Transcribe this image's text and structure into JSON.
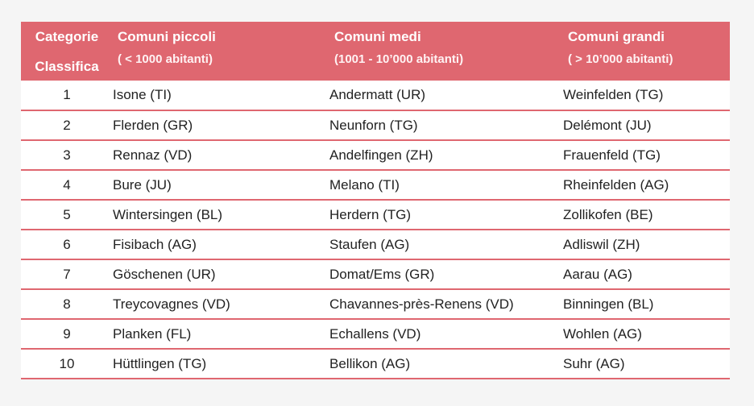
{
  "header": {
    "category_line1": "Categorie",
    "category_line2": "Classifica",
    "columns": [
      {
        "title": "Comuni piccoli",
        "subtitle": "( < 1000 abitanti)"
      },
      {
        "title": "Comuni medi",
        "subtitle": "(1001 - 10’000 abitanti)"
      },
      {
        "title": "Comuni grandi",
        "subtitle": "( > 10’000 abitanti)"
      }
    ]
  },
  "rows": [
    {
      "rank": "1",
      "small": "Isone (TI)",
      "medium": "Andermatt (UR)",
      "large": "Weinfelden (TG)"
    },
    {
      "rank": "2",
      "small": "Flerden (GR)",
      "medium": "Neunforn (TG)",
      "large": "Delémont (JU)"
    },
    {
      "rank": "3",
      "small": "Rennaz (VD)",
      "medium": "Andelfingen (ZH)",
      "large": "Frauenfeld (TG)"
    },
    {
      "rank": "4",
      "small": "Bure (JU)",
      "medium": "Melano (TI)",
      "large": "Rheinfelden (AG)"
    },
    {
      "rank": "5",
      "small": "Wintersingen (BL)",
      "medium": "Herdern (TG)",
      "large": "Zollikofen (BE)"
    },
    {
      "rank": "6",
      "small": "Fisibach (AG)",
      "medium": "Staufen (AG)",
      "large": "Adliswil (ZH)"
    },
    {
      "rank": "7",
      "small": "Göschenen (UR)",
      "medium": "Domat/Ems (GR)",
      "large": "Aarau (AG)"
    },
    {
      "rank": "8",
      "small": "Treycovagnes (VD)",
      "medium": "Chavannes-près-Renens (VD)",
      "large": "Binningen (BL)"
    },
    {
      "rank": "9",
      "small": "Planken (FL)",
      "medium": "Echallens (VD)",
      "large": "Wohlen (AG)"
    },
    {
      "rank": "10",
      "small": "Hüttlingen (TG)",
      "medium": "Bellikon (AG)",
      "large": "Suhr (AG)"
    }
  ],
  "colors": {
    "header_bg": "#df6770",
    "row_divider": "#df6770",
    "text": "#222222"
  }
}
